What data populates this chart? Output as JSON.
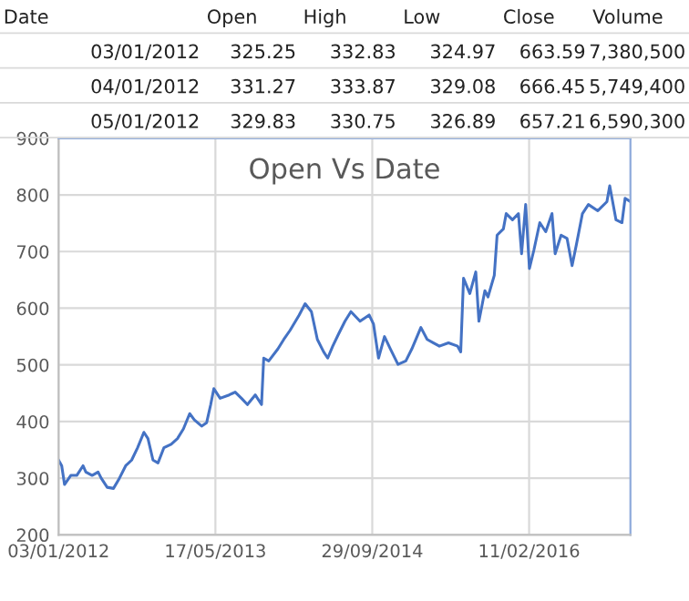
{
  "chart_data": {
    "type": "line",
    "title": "Open Vs Date",
    "annotations": [
      "Date",
      "Open",
      "High",
      "Low",
      "Close",
      "Volume",
      "03/01/2012",
      "325.25",
      "332.83",
      "324.97",
      "663.59",
      "7,380,500",
      "04/01/2012",
      "331.27",
      "333.87",
      "329.08",
      "666.45",
      "5,749,400",
      "05/01/2012",
      "329.83",
      "330.75",
      "326.89",
      "657.21",
      "6,590,300"
    ],
    "x": [
      "2012-01-03",
      "2012-01-13",
      "2012-01-22",
      "2012-02-11",
      "2012-03-01",
      "2012-03-21",
      "2012-03-30",
      "2012-04-19",
      "2012-05-08",
      "2012-05-18",
      "2012-06-06",
      "2012-06-26",
      "2012-07-15",
      "2012-08-04",
      "2012-08-23",
      "2012-09-11",
      "2012-10-01",
      "2012-10-14",
      "2012-10-30",
      "2012-11-15",
      "2012-12-04",
      "2012-12-27",
      "2013-01-16",
      "2013-02-04",
      "2013-02-24",
      "2013-03-11",
      "2013-04-03",
      "2013-04-19",
      "2013-05-02",
      "2013-05-12",
      "2013-06-01",
      "2013-06-30",
      "2013-07-19",
      "2013-08-08",
      "2013-08-27",
      "2013-09-21",
      "2013-10-11",
      "2013-10-18",
      "2013-11-03",
      "2013-12-02",
      "2013-12-21",
      "2014-01-10",
      "2014-02-08",
      "2014-02-27",
      "2014-03-19",
      "2014-04-07",
      "2014-04-27",
      "2014-05-10",
      "2014-05-26",
      "2014-06-14",
      "2014-07-04",
      "2014-07-23",
      "2014-08-21",
      "2014-09-19",
      "2014-10-03",
      "2014-10-19",
      "2014-11-07",
      "2014-11-26",
      "2014-12-20",
      "2015-01-14",
      "2015-02-02",
      "2015-03-03",
      "2015-03-23",
      "2015-04-11",
      "2015-05-01",
      "2015-05-30",
      "2015-06-28",
      "2015-07-08",
      "2015-07-17",
      "2015-08-06",
      "2015-08-25",
      "2015-09-04",
      "2015-09-23",
      "2015-10-03",
      "2015-10-23",
      "2015-11-01",
      "2015-11-21",
      "2015-11-30",
      "2015-12-20",
      "2016-01-08",
      "2016-01-18",
      "2016-01-31",
      "2016-02-12",
      "2016-02-26",
      "2016-03-16",
      "2016-04-04",
      "2016-04-24",
      "2016-05-04",
      "2016-05-23",
      "2016-06-11",
      "2016-06-27",
      "2016-07-11",
      "2016-07-30",
      "2016-08-18",
      "2016-09-17",
      "2016-10-16",
      "2016-10-25",
      "2016-11-14",
      "2016-12-03",
      "2016-12-13",
      "2016-12-30"
    ],
    "series": [
      {
        "color": "#4472c4",
        "values": [
          332,
          322,
          289,
          305,
          305,
          322,
          311,
          305,
          311,
          300,
          284,
          282,
          300,
          322,
          332,
          354,
          381,
          370,
          332,
          327,
          354,
          360,
          370,
          387,
          414,
          403,
          392,
          398,
          430,
          458,
          441,
          447,
          452,
          441,
          430,
          447,
          430,
          512,
          507,
          528,
          545,
          561,
          588,
          608,
          594,
          545,
          523,
          512,
          533,
          555,
          577,
          594,
          577,
          588,
          572,
          512,
          550,
          528,
          501,
          507,
          528,
          566,
          545,
          539,
          533,
          539,
          533,
          523,
          653,
          626,
          664,
          577,
          631,
          620,
          658,
          729,
          740,
          767,
          756,
          767,
          696,
          783,
          670,
          702,
          751,
          735,
          767,
          696,
          729,
          723,
          675,
          713,
          767,
          783,
          772,
          788,
          816,
          756,
          751,
          794,
          788
        ]
      }
    ],
    "xlim": [
      "2012-01-03",
      "2016-12-30"
    ],
    "xticks": [
      {
        "value": "2012-01-03",
        "label": "03/01/2012"
      },
      {
        "value": "2013-05-17",
        "label": "17/05/2013"
      },
      {
        "value": "2014-09-29",
        "label": "29/09/2014"
      },
      {
        "value": "2016-02-11",
        "label": "11/02/2016"
      }
    ],
    "ylim": [
      200,
      900
    ],
    "yticks": [
      200,
      300,
      400,
      500,
      600,
      700,
      800,
      900
    ],
    "grid": true,
    "marker": "none",
    "line_style": "solid"
  }
}
